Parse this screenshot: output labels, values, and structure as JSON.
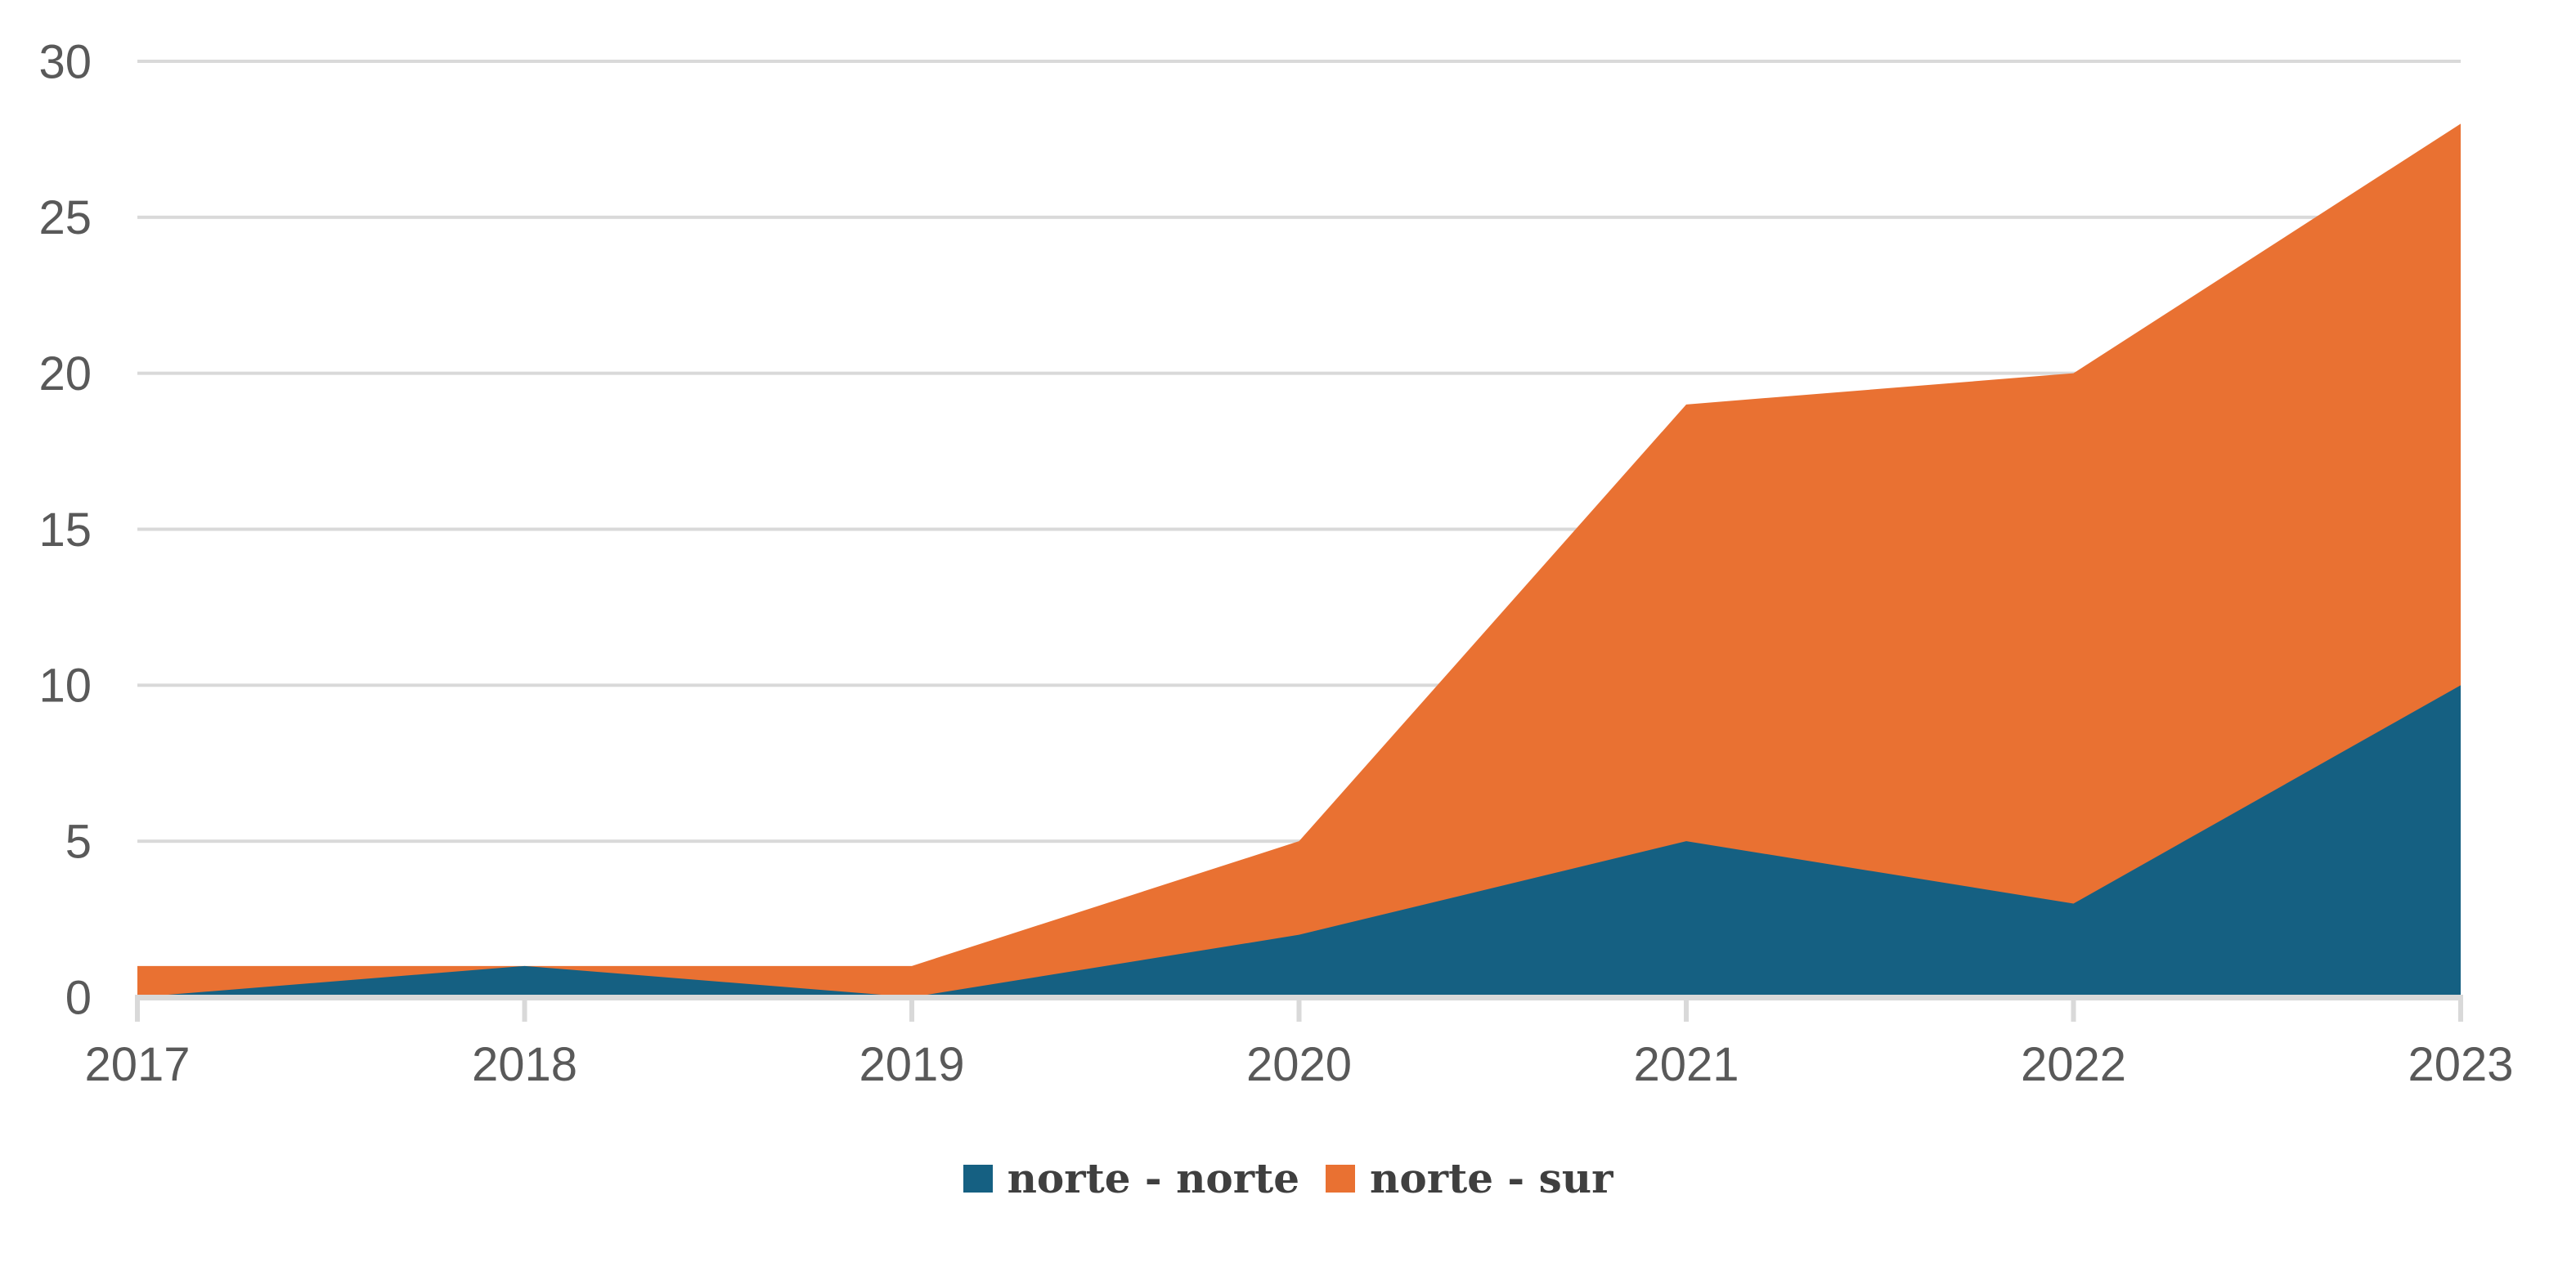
{
  "chart_data": {
    "type": "area",
    "stacked": true,
    "categories": [
      "2017",
      "2018",
      "2019",
      "2020",
      "2021",
      "2022",
      "2023"
    ],
    "series": [
      {
        "name": "norte - norte",
        "values": [
          0,
          1,
          0,
          2,
          5,
          3,
          10
        ],
        "color": "#156082"
      },
      {
        "name": "norte - sur",
        "values": [
          1,
          0,
          1,
          3,
          14,
          17,
          18
        ],
        "color": "#E97132"
      }
    ],
    "stacked_totals": [
      1,
      1,
      1,
      5,
      19,
      20,
      28
    ],
    "ylim": [
      0,
      30
    ],
    "y_ticks": [
      0,
      5,
      10,
      15,
      20,
      25,
      30
    ],
    "grid": true,
    "legend_position": "bottom-center",
    "colors": {
      "gridline": "#D9D9D9",
      "axis_tick": "#D9D9D9",
      "axis_label": "#595959",
      "legend_text": "#3F3F3F",
      "background": "#FFFFFF"
    }
  }
}
